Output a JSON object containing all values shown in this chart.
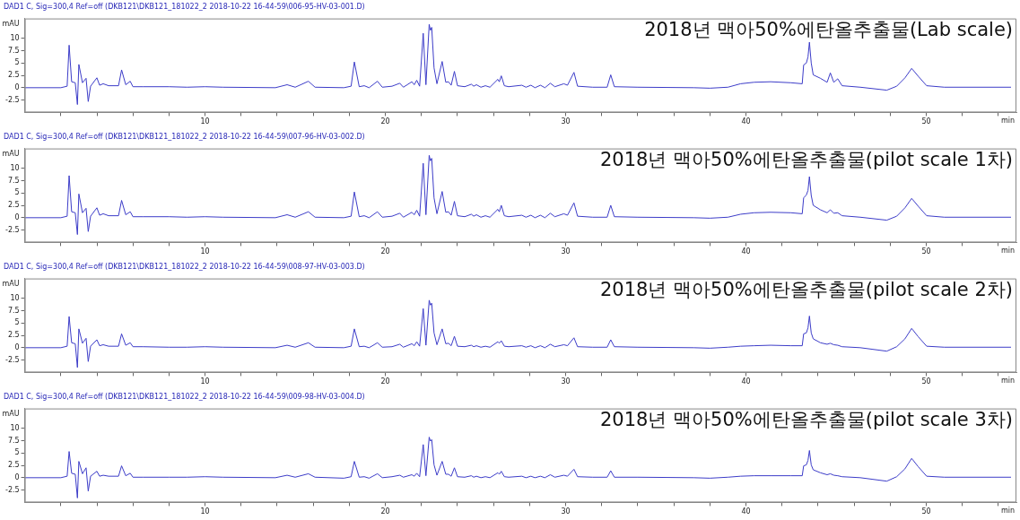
{
  "chart_data": [
    {
      "type": "line",
      "title": "DAD1 C, Sig=300,4 Ref=off (DKB121\\DKB121_181022_2 2018-10-22 16-44-59\\006-95-HV-03-001.D)",
      "annotations": [
        "2018년 맥아50%에탄올추출물(Lab scale)"
      ],
      "xlabel": "min",
      "ylabel": "mAU",
      "color": "#3c3cc8",
      "marker": "none",
      "grid": false,
      "legend": false,
      "xlim": [
        0,
        55
      ],
      "ylim": [
        -5,
        14
      ],
      "xticks": [
        {
          "value": 2,
          "label": null
        },
        {
          "value": 4,
          "label": null
        },
        {
          "value": 6,
          "label": null
        },
        {
          "value": 8,
          "label": null
        },
        10,
        {
          "value": 12,
          "label": null
        },
        {
          "value": 14,
          "label": null
        },
        {
          "value": 16,
          "label": null
        },
        {
          "value": 18,
          "label": null
        },
        20,
        {
          "value": 22,
          "label": null
        },
        {
          "value": 24,
          "label": null
        },
        {
          "value": 26,
          "label": null
        },
        {
          "value": 28,
          "label": null
        },
        30,
        {
          "value": 32,
          "label": null
        },
        {
          "value": 34,
          "label": null
        },
        {
          "value": 36,
          "label": null
        },
        {
          "value": 38,
          "label": null
        },
        40,
        {
          "value": 42,
          "label": null
        },
        {
          "value": 44,
          "label": null
        },
        {
          "value": 46,
          "label": null
        },
        {
          "value": 48,
          "label": null
        },
        50,
        {
          "value": 52,
          "label": null
        },
        {
          "value": 54,
          "label": null
        }
      ],
      "yticks": [
        -2.5,
        0,
        2.5,
        5,
        7.5,
        10
      ],
      "x": [
        0,
        2.0,
        2.35,
        2.46,
        2.6,
        2.8,
        2.92,
        3.0,
        3.2,
        3.4,
        3.52,
        3.65,
        4.0,
        4.15,
        4.35,
        4.65,
        5.2,
        5.37,
        5.6,
        5.85,
        6.0,
        6.55,
        8.0,
        9.0,
        10.0,
        11.0,
        13.9,
        14.55,
        15.0,
        15.73,
        16.1,
        17.7,
        18.1,
        18.28,
        18.55,
        18.83,
        19.1,
        19.56,
        19.83,
        20.37,
        20.8,
        21.0,
        21.47,
        21.6,
        21.74,
        21.9,
        22.1,
        22.25,
        22.43,
        22.5,
        22.57,
        22.7,
        22.86,
        23.15,
        23.35,
        23.5,
        23.65,
        23.83,
        24.0,
        24.4,
        24.77,
        24.9,
        25.05,
        25.3,
        25.55,
        25.8,
        26.24,
        26.32,
        26.43,
        26.6,
        26.84,
        27.57,
        27.8,
        28.07,
        28.3,
        28.6,
        28.85,
        29.15,
        29.4,
        29.9,
        30.1,
        30.46,
        30.66,
        31.5,
        32.3,
        32.5,
        32.7,
        34.0,
        37.1,
        38.0,
        39.0,
        39.7,
        40.45,
        41.37,
        42.5,
        43.12,
        43.2,
        43.35,
        43.44,
        43.52,
        43.62,
        43.73,
        44.13,
        44.5,
        44.68,
        44.87,
        45.09,
        45.33,
        46.34,
        47.81,
        48.36,
        48.82,
        49.19,
        49.56,
        50.02,
        51.0,
        54.7
      ],
      "values": [
        0,
        0,
        0.3,
        8.6,
        1.2,
        1.0,
        -3.4,
        4.7,
        1.0,
        1.9,
        -2.8,
        0.3,
        2.0,
        0.5,
        0.8,
        0.4,
        0.4,
        3.6,
        0.6,
        1.3,
        0.2,
        0.2,
        0.2,
        0.1,
        0.2,
        0.1,
        0,
        0.6,
        0.1,
        1.3,
        0.1,
        0,
        0.3,
        5.2,
        0.2,
        0.4,
        0,
        1.3,
        0.1,
        0.3,
        0.9,
        0.1,
        1.2,
        0.6,
        1.5,
        0.3,
        11,
        0.6,
        12.8,
        11.6,
        12.2,
        4,
        0.8,
        5.3,
        1.1,
        1.2,
        0.5,
        3.3,
        0.4,
        0.2,
        0.7,
        0.3,
        0.6,
        0.1,
        0.4,
        0.1,
        1.7,
        1.2,
        2.4,
        0.4,
        0.2,
        0.5,
        0.1,
        0.5,
        0,
        0.5,
        0,
        0.9,
        0.2,
        0.8,
        0.5,
        3.1,
        0.3,
        0.1,
        0.1,
        2.6,
        0.2,
        0.1,
        0,
        -0.1,
        0.1,
        0.8,
        1.1,
        1.2,
        1.0,
        0.8,
        4.6,
        5.0,
        6.2,
        9.2,
        5,
        2.6,
        1.9,
        1.1,
        3.0,
        1.1,
        1.8,
        0.4,
        0.1,
        -0.5,
        0.3,
        2.0,
        3.9,
        2.3,
        0.4,
        0.1,
        0.1
      ]
    },
    {
      "type": "line",
      "title": "DAD1 C, Sig=300,4 Ref=off (DKB121\\DKB121_181022_2 2018-10-22 16-44-59\\007-96-HV-03-002.D)",
      "annotations": [
        "2018년 맥아50%에탄올추출물(pilot scale 1차)"
      ],
      "xlabel": "min",
      "ylabel": "mAU",
      "color": "#3c3cc8",
      "marker": "none",
      "grid": false,
      "legend": false,
      "xlim": [
        0,
        55
      ],
      "ylim": [
        -5,
        14
      ],
      "xticks": [
        {
          "value": 2,
          "label": null
        },
        {
          "value": 4,
          "label": null
        },
        {
          "value": 6,
          "label": null
        },
        {
          "value": 8,
          "label": null
        },
        10,
        {
          "value": 12,
          "label": null
        },
        {
          "value": 14,
          "label": null
        },
        {
          "value": 16,
          "label": null
        },
        {
          "value": 18,
          "label": null
        },
        20,
        {
          "value": 22,
          "label": null
        },
        {
          "value": 24,
          "label": null
        },
        {
          "value": 26,
          "label": null
        },
        {
          "value": 28,
          "label": null
        },
        30,
        {
          "value": 32,
          "label": null
        },
        {
          "value": 34,
          "label": null
        },
        {
          "value": 36,
          "label": null
        },
        {
          "value": 38,
          "label": null
        },
        40,
        {
          "value": 42,
          "label": null
        },
        {
          "value": 44,
          "label": null
        },
        {
          "value": 46,
          "label": null
        },
        {
          "value": 48,
          "label": null
        },
        50,
        {
          "value": 52,
          "label": null
        },
        {
          "value": 54,
          "label": null
        }
      ],
      "yticks": [
        -2.5,
        0,
        2.5,
        5,
        7.5,
        10
      ],
      "x": [
        0,
        2.0,
        2.35,
        2.46,
        2.6,
        2.8,
        2.92,
        3.0,
        3.2,
        3.4,
        3.52,
        3.65,
        4.0,
        4.15,
        4.35,
        4.65,
        5.2,
        5.37,
        5.6,
        5.85,
        6.0,
        6.55,
        8.0,
        9.0,
        10.0,
        11.0,
        13.9,
        14.55,
        15.0,
        15.73,
        16.1,
        17.7,
        18.1,
        18.28,
        18.55,
        18.83,
        19.1,
        19.56,
        19.83,
        20.37,
        20.8,
        21.0,
        21.47,
        21.6,
        21.74,
        21.9,
        22.1,
        22.25,
        22.43,
        22.5,
        22.57,
        22.7,
        22.86,
        23.15,
        23.35,
        23.5,
        23.65,
        23.83,
        24.0,
        24.4,
        24.77,
        24.9,
        25.05,
        25.3,
        25.55,
        25.8,
        26.24,
        26.32,
        26.43,
        26.6,
        26.84,
        27.57,
        27.8,
        28.07,
        28.3,
        28.6,
        28.85,
        29.15,
        29.4,
        29.9,
        30.1,
        30.46,
        30.66,
        31.5,
        32.3,
        32.5,
        32.7,
        34.0,
        37.1,
        38.0,
        39.0,
        39.7,
        40.45,
        41.37,
        42.5,
        43.12,
        43.2,
        43.35,
        43.44,
        43.52,
        43.62,
        43.73,
        44.13,
        44.5,
        44.68,
        44.87,
        45.09,
        45.33,
        46.34,
        47.81,
        48.36,
        48.82,
        49.19,
        49.56,
        50.02,
        51.0,
        54.7
      ],
      "values": [
        0,
        0,
        0.3,
        8.5,
        1.2,
        1.0,
        -3.4,
        4.8,
        1.0,
        1.9,
        -2.8,
        0.3,
        2.0,
        0.5,
        0.8,
        0.4,
        0.4,
        3.5,
        0.6,
        1.2,
        0.2,
        0.2,
        0.2,
        0.1,
        0.2,
        0.1,
        0,
        0.6,
        0.1,
        1.2,
        0.1,
        0,
        0.3,
        5.2,
        0.2,
        0.4,
        0,
        1.2,
        0.1,
        0.3,
        0.9,
        0.1,
        1.1,
        0.6,
        1.5,
        0.3,
        11,
        0.6,
        12.6,
        11.5,
        12.0,
        4,
        0.8,
        5.3,
        1.1,
        1.2,
        0.5,
        3.3,
        0.4,
        0.2,
        0.7,
        0.3,
        0.6,
        0.1,
        0.4,
        0.1,
        1.7,
        1.2,
        2.5,
        0.4,
        0.2,
        0.5,
        0.1,
        0.5,
        0,
        0.5,
        0,
        0.9,
        0.2,
        0.8,
        0.5,
        3.0,
        0.3,
        0.1,
        0.1,
        2.5,
        0.2,
        0.1,
        0,
        -0.1,
        0.1,
        0.7,
        1.0,
        1.1,
        1.0,
        0.8,
        4.0,
        4.6,
        5.5,
        8.3,
        4.5,
        2.5,
        1.6,
        1.0,
        1.6,
        0.9,
        1.0,
        0.4,
        0.1,
        -0.5,
        0.3,
        2.0,
        3.9,
        2.3,
        0.4,
        0.1,
        0.1
      ]
    },
    {
      "type": "line",
      "title": "DAD1 C, Sig=300,4 Ref=off (DKB121\\DKB121_181022_2 2018-10-22 16-44-59\\008-97-HV-03-003.D)",
      "annotations": [
        "2018년 맥아50%에탄올추출물(pilot scale 2차)"
      ],
      "xlabel": "min",
      "ylabel": "mAU",
      "color": "#3c3cc8",
      "marker": "none",
      "grid": false,
      "legend": false,
      "xlim": [
        0,
        55
      ],
      "ylim": [
        -5,
        14
      ],
      "xticks": [
        {
          "value": 2,
          "label": null
        },
        {
          "value": 4,
          "label": null
        },
        {
          "value": 6,
          "label": null
        },
        {
          "value": 8,
          "label": null
        },
        10,
        {
          "value": 12,
          "label": null
        },
        {
          "value": 14,
          "label": null
        },
        {
          "value": 16,
          "label": null
        },
        {
          "value": 18,
          "label": null
        },
        20,
        {
          "value": 22,
          "label": null
        },
        {
          "value": 24,
          "label": null
        },
        {
          "value": 26,
          "label": null
        },
        {
          "value": 28,
          "label": null
        },
        30,
        {
          "value": 32,
          "label": null
        },
        {
          "value": 34,
          "label": null
        },
        {
          "value": 36,
          "label": null
        },
        {
          "value": 38,
          "label": null
        },
        40,
        {
          "value": 42,
          "label": null
        },
        {
          "value": 44,
          "label": null
        },
        {
          "value": 46,
          "label": null
        },
        {
          "value": 48,
          "label": null
        },
        50,
        {
          "value": 52,
          "label": null
        },
        {
          "value": 54,
          "label": null
        }
      ],
      "yticks": [
        -2.5,
        0,
        2.5,
        5,
        7.5,
        10
      ],
      "x": [
        0,
        2.0,
        2.35,
        2.46,
        2.6,
        2.8,
        2.92,
        3.0,
        3.2,
        3.4,
        3.52,
        3.65,
        4.0,
        4.15,
        4.35,
        4.65,
        5.2,
        5.37,
        5.6,
        5.85,
        6.0,
        6.55,
        8.0,
        9.0,
        10.0,
        11.0,
        13.9,
        14.55,
        15.0,
        15.73,
        16.1,
        17.7,
        18.1,
        18.28,
        18.55,
        18.83,
        19.1,
        19.56,
        19.83,
        20.37,
        20.8,
        21.0,
        21.47,
        21.6,
        21.74,
        21.9,
        22.1,
        22.25,
        22.43,
        22.5,
        22.57,
        22.7,
        22.86,
        23.15,
        23.35,
        23.5,
        23.65,
        23.83,
        24.0,
        24.4,
        24.77,
        24.9,
        25.05,
        25.3,
        25.55,
        25.8,
        26.24,
        26.32,
        26.43,
        26.6,
        26.84,
        27.57,
        27.8,
        28.07,
        28.3,
        28.6,
        28.85,
        29.15,
        29.4,
        29.9,
        30.1,
        30.46,
        30.66,
        31.5,
        32.3,
        32.5,
        32.7,
        34.0,
        37.1,
        38.0,
        39.0,
        39.7,
        40.45,
        41.37,
        42.5,
        43.12,
        43.2,
        43.35,
        43.44,
        43.52,
        43.62,
        43.73,
        44.13,
        44.5,
        44.68,
        44.87,
        45.09,
        45.33,
        46.34,
        47.81,
        48.36,
        48.82,
        49.19,
        49.56,
        50.02,
        51.0,
        54.7
      ],
      "values": [
        0,
        0,
        0.3,
        6.3,
        1.0,
        0.8,
        -4.0,
        3.8,
        0.9,
        1.9,
        -2.8,
        0.3,
        1.6,
        0.4,
        0.6,
        0.3,
        0.3,
        2.8,
        0.5,
        1.0,
        0.2,
        0.2,
        0.1,
        0.1,
        0.2,
        0.1,
        0,
        0.5,
        0.1,
        1.0,
        0.1,
        0,
        0.3,
        3.8,
        0.2,
        0.3,
        0,
        1.0,
        0.1,
        0.2,
        0.7,
        0.1,
        0.8,
        0.4,
        1.2,
        0.3,
        7.9,
        0.5,
        9.6,
        8.6,
        9.0,
        3.0,
        0.6,
        3.8,
        0.8,
        0.9,
        0.4,
        2.3,
        0.3,
        0.2,
        0.5,
        0.2,
        0.4,
        0.1,
        0.3,
        0.1,
        1.2,
        0.9,
        1.4,
        0.3,
        0.2,
        0.4,
        0.1,
        0.4,
        0,
        0.4,
        0,
        0.7,
        0.2,
        0.6,
        0.4,
        2.0,
        0.2,
        0.1,
        0.1,
        1.6,
        0.2,
        0.1,
        0,
        -0.1,
        0.1,
        0.3,
        0.4,
        0.5,
        0.4,
        0.4,
        2.8,
        3.0,
        4.0,
        6.4,
        3.0,
        1.8,
        1.0,
        0.7,
        0.9,
        0.6,
        0.5,
        0.2,
        0,
        -0.7,
        0.2,
        1.8,
        3.9,
        2.2,
        0.3,
        0.1,
        0.1
      ]
    },
    {
      "type": "line",
      "title": "DAD1 C, Sig=300,4 Ref=off (DKB121\\DKB121_181022_2 2018-10-22 16-44-59\\009-98-HV-03-004.D)",
      "annotations": [
        "2018년 맥아50%에탄올추출물(pilot scale 3차)"
      ],
      "xlabel": "min",
      "ylabel": "mAU",
      "color": "#3c3cc8",
      "marker": "none",
      "grid": false,
      "legend": false,
      "xlim": [
        0,
        55
      ],
      "ylim": [
        -5,
        14
      ],
      "xticks": [
        {
          "value": 2,
          "label": null
        },
        {
          "value": 4,
          "label": null
        },
        {
          "value": 6,
          "label": null
        },
        {
          "value": 8,
          "label": null
        },
        10,
        {
          "value": 12,
          "label": null
        },
        {
          "value": 14,
          "label": null
        },
        {
          "value": 16,
          "label": null
        },
        {
          "value": 18,
          "label": null
        },
        20,
        {
          "value": 22,
          "label": null
        },
        {
          "value": 24,
          "label": null
        },
        {
          "value": 26,
          "label": null
        },
        {
          "value": 28,
          "label": null
        },
        30,
        {
          "value": 32,
          "label": null
        },
        {
          "value": 34,
          "label": null
        },
        {
          "value": 36,
          "label": null
        },
        {
          "value": 38,
          "label": null
        },
        40,
        {
          "value": 42,
          "label": null
        },
        {
          "value": 44,
          "label": null
        },
        {
          "value": 46,
          "label": null
        },
        {
          "value": 48,
          "label": null
        },
        50,
        {
          "value": 52,
          "label": null
        },
        {
          "value": 54,
          "label": null
        }
      ],
      "yticks": [
        -2.5,
        0,
        2.5,
        5,
        7.5,
        10
      ],
      "x": [
        0,
        2.0,
        2.35,
        2.46,
        2.6,
        2.8,
        2.92,
        3.0,
        3.2,
        3.4,
        3.52,
        3.65,
        4.0,
        4.15,
        4.35,
        4.65,
        5.2,
        5.37,
        5.6,
        5.85,
        6.0,
        6.55,
        8.0,
        9.0,
        10.0,
        11.0,
        13.9,
        14.55,
        15.0,
        15.73,
        16.1,
        17.7,
        18.1,
        18.28,
        18.55,
        18.83,
        19.1,
        19.56,
        19.83,
        20.37,
        20.8,
        21.0,
        21.47,
        21.6,
        21.74,
        21.9,
        22.1,
        22.25,
        22.43,
        22.5,
        22.57,
        22.7,
        22.86,
        23.15,
        23.35,
        23.5,
        23.65,
        23.83,
        24.0,
        24.4,
        24.77,
        24.9,
        25.05,
        25.3,
        25.55,
        25.8,
        26.24,
        26.32,
        26.43,
        26.6,
        26.84,
        27.57,
        27.8,
        28.07,
        28.3,
        28.6,
        28.85,
        29.15,
        29.4,
        29.9,
        30.1,
        30.46,
        30.66,
        31.5,
        32.3,
        32.5,
        32.7,
        34.0,
        37.1,
        38.0,
        39.0,
        39.7,
        40.45,
        41.37,
        42.5,
        43.12,
        43.2,
        43.35,
        43.44,
        43.52,
        43.62,
        43.73,
        44.13,
        44.5,
        44.68,
        44.87,
        45.09,
        45.33,
        46.34,
        47.81,
        48.36,
        48.82,
        49.19,
        49.56,
        50.02,
        51.0,
        54.7
      ],
      "values": [
        0,
        0,
        0.3,
        5.3,
        0.9,
        0.7,
        -4.1,
        3.3,
        0.8,
        2.0,
        -2.7,
        0.3,
        1.3,
        0.3,
        0.5,
        0.3,
        0.3,
        2.4,
        0.4,
        0.9,
        0.1,
        0.1,
        0.1,
        0.1,
        0.2,
        0.1,
        0,
        0.5,
        0.1,
        0.8,
        0.1,
        -0.1,
        0.2,
        3.3,
        0.1,
        0.2,
        -0.1,
        0.8,
        0,
        0.2,
        0.5,
        0.1,
        0.6,
        0.3,
        0.9,
        0.2,
        6.7,
        0.4,
        8.2,
        7.4,
        7.7,
        2.6,
        0.5,
        3.3,
        0.7,
        0.7,
        0.3,
        2.0,
        0.2,
        0.1,
        0.4,
        0.1,
        0.3,
        0,
        0.2,
        0,
        1.0,
        0.7,
        1.3,
        0.2,
        0.1,
        0.3,
        0,
        0.3,
        0,
        0.3,
        0,
        0.6,
        0.1,
        0.5,
        0.3,
        1.7,
        0.2,
        0.1,
        0.1,
        1.4,
        0.1,
        0.1,
        0,
        -0.1,
        0.1,
        0.3,
        0.4,
        0.4,
        0.4,
        0.4,
        2.4,
        2.6,
        3.5,
        5.5,
        2.6,
        1.6,
        1.0,
        0.6,
        0.8,
        0.5,
        0.4,
        0.2,
        0,
        -0.7,
        0.2,
        1.8,
        3.9,
        2.2,
        0.3,
        0.1,
        0.1
      ]
    }
  ]
}
